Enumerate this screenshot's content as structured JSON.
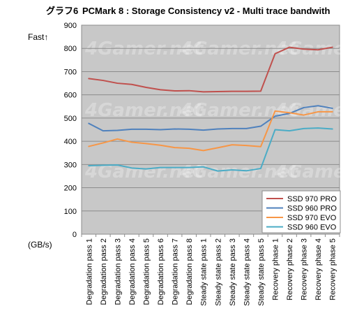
{
  "chart_data": {
    "type": "line",
    "title": "PCMark 8 : Storage Consistency v2 - Multi trace bandwith",
    "figure_label": "グラフ6",
    "direction_label": "Fast↑",
    "ylabel": "(GB/s)",
    "watermark": "4Gamer.net",
    "ylim": [
      0,
      900
    ],
    "yticks": [
      0,
      100,
      200,
      300,
      400,
      500,
      600,
      700,
      800,
      900
    ],
    "grid": true,
    "legend_position": "bottom-right",
    "categories": [
      "Degradation pass 1",
      "Degradation pass 2",
      "Degradation pass 3",
      "Degradation pass 4",
      "Degradation pass 5",
      "Degradation pass 6",
      "Degradation pass 7",
      "Degradation pass 8",
      "Steady state pass 1",
      "Steady state pass 2",
      "Steady state pass 3",
      "Steady state pass 4",
      "Steady state pass 5",
      "Recovery phase 1",
      "Recovery phase 2",
      "Recovery phase 3",
      "Recovery phase 4",
      "Recovery phase 5"
    ],
    "series": [
      {
        "name": "SSD 970 PRO",
        "color": "#c0504d",
        "values": [
          670,
          662,
          650,
          645,
          632,
          622,
          617,
          618,
          613,
          614,
          615,
          615,
          616,
          777,
          805,
          797,
          794,
          805
        ]
      },
      {
        "name": "SSD 960 PRO",
        "color": "#4f81bd",
        "values": [
          477,
          445,
          447,
          452,
          452,
          450,
          453,
          452,
          448,
          453,
          455,
          455,
          465,
          508,
          520,
          545,
          553,
          542
        ]
      },
      {
        "name": "SSD 970 EVO",
        "color": "#f79646",
        "values": [
          378,
          393,
          410,
          396,
          390,
          383,
          373,
          370,
          360,
          372,
          385,
          382,
          377,
          530,
          523,
          513,
          527,
          527
        ]
      },
      {
        "name": "SSD 960 EVO",
        "color": "#4bacc6",
        "values": [
          295,
          297,
          298,
          285,
          281,
          287,
          287,
          287,
          290,
          272,
          277,
          273,
          283,
          450,
          445,
          455,
          457,
          453
        ]
      }
    ]
  }
}
